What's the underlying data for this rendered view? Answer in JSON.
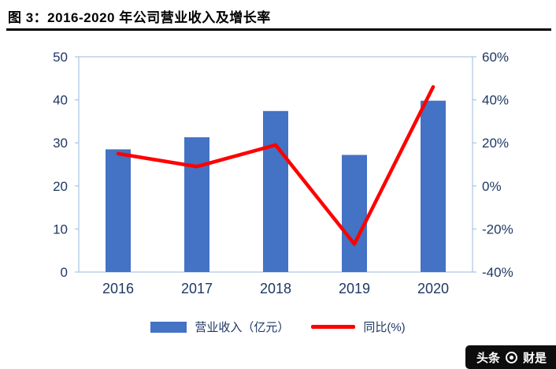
{
  "header": {
    "title": "图 3：2016-2020 年公司营业收入及增长率"
  },
  "chart_data": {
    "type": "bar",
    "subtype": "bar+line combo, dual axis",
    "title": "图 3：2016-2020 年公司营业收入及增长率",
    "categories": [
      "2016",
      "2017",
      "2018",
      "2019",
      "2020"
    ],
    "series": [
      {
        "name": "营业收入（亿元）",
        "type": "bar",
        "axis": "left",
        "values": [
          28.5,
          31.3,
          37.4,
          27.2,
          39.8
        ],
        "color": "#4472C4"
      },
      {
        "name": "同比(%)",
        "type": "line",
        "axis": "right",
        "values": [
          15,
          9,
          19,
          -27,
          46
        ],
        "color": "#FF0000"
      }
    ],
    "left_axis": {
      "min": 0,
      "max": 50,
      "ticks": [
        0,
        10,
        20,
        30,
        40,
        50
      ]
    },
    "right_axis": {
      "min": -40,
      "max": 60,
      "ticks": [
        -40,
        -20,
        0,
        20,
        40,
        60
      ],
      "suffix": "%"
    },
    "grid": false,
    "legend_position": "bottom",
    "colors": {
      "axis_text": "#1F3864",
      "plot_border": "#A9C4E4"
    }
  },
  "watermark": {
    "text_left": "头条",
    "text_right": "财是"
  }
}
